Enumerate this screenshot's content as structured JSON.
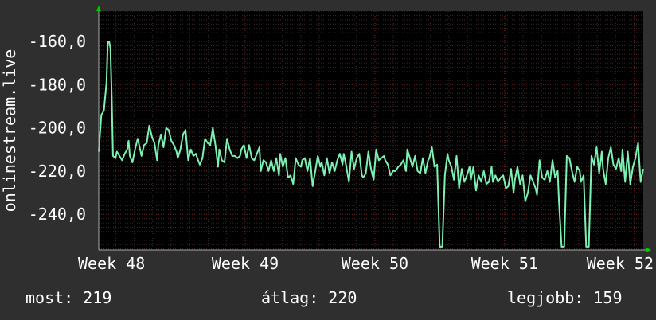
{
  "colors": {
    "background": "#2f2f2f",
    "plot_background": "#000000",
    "line": "#7df0b4",
    "grid": "#6a1f1f",
    "text": "#ffffff",
    "arrow": "#00cc00"
  },
  "stats": {
    "current": "most: 219",
    "average": "átlag: 220",
    "best": "legjobb: 159"
  },
  "chart_data": {
    "type": "line",
    "ylabel": "onlinestream.live",
    "xlabel": "",
    "title": "",
    "x_tick_labels": [
      "Week 48",
      "Week 49",
      "Week 50",
      "Week 51",
      "Week 52"
    ],
    "y_tick_labels": [
      "-160,0",
      "-180,0",
      "-200,0",
      "-220,0",
      "-240,0"
    ],
    "y_ticks": [
      -160,
      -180,
      -200,
      -220,
      -240
    ],
    "ylim": [
      -256.5,
      -146
    ],
    "xlim": [
      47.87,
      52.07
    ],
    "grid": true,
    "series": [
      {
        "values": [
          [
            47.87,
            -211
          ],
          [
            47.89,
            -194
          ],
          [
            47.91,
            -192
          ],
          [
            47.93,
            -179
          ],
          [
            47.94,
            -160
          ],
          [
            47.95,
            -160
          ],
          [
            47.96,
            -163
          ],
          [
            47.97,
            -185
          ],
          [
            47.98,
            -213
          ],
          [
            48.0,
            -214
          ],
          [
            48.01,
            -211
          ],
          [
            48.03,
            -213
          ],
          [
            48.05,
            -215
          ],
          [
            48.07,
            -212
          ],
          [
            48.09,
            -210
          ],
          [
            48.1,
            -206
          ],
          [
            48.11,
            -213
          ],
          [
            48.13,
            -216
          ],
          [
            48.15,
            -210
          ],
          [
            48.17,
            -205
          ],
          [
            48.19,
            -210
          ],
          [
            48.2,
            -213
          ],
          [
            48.22,
            -208
          ],
          [
            48.24,
            -207
          ],
          [
            48.26,
            -199
          ],
          [
            48.28,
            -204
          ],
          [
            48.3,
            -207
          ],
          [
            48.32,
            -215
          ],
          [
            48.33,
            -208
          ],
          [
            48.35,
            -203
          ],
          [
            48.37,
            -209
          ],
          [
            48.39,
            -200
          ],
          [
            48.41,
            -201
          ],
          [
            48.43,
            -206
          ],
          [
            48.45,
            -208
          ],
          [
            48.47,
            -211
          ],
          [
            48.48,
            -214
          ],
          [
            48.5,
            -210
          ],
          [
            48.52,
            -203
          ],
          [
            48.54,
            -201
          ],
          [
            48.56,
            -215
          ],
          [
            48.58,
            -210
          ],
          [
            48.6,
            -213
          ],
          [
            48.62,
            -212
          ],
          [
            48.63,
            -214
          ],
          [
            48.65,
            -217
          ],
          [
            48.67,
            -214
          ],
          [
            48.69,
            -205
          ],
          [
            48.71,
            -207
          ],
          [
            48.73,
            -208
          ],
          [
            48.75,
            -200
          ],
          [
            48.77,
            -208
          ],
          [
            48.79,
            -218
          ],
          [
            48.8,
            -210
          ],
          [
            48.82,
            -215
          ],
          [
            48.84,
            -216
          ],
          [
            48.86,
            -205
          ],
          [
            48.88,
            -210
          ],
          [
            48.9,
            -213
          ],
          [
            48.92,
            -213
          ],
          [
            48.94,
            -214
          ],
          [
            48.96,
            -213
          ],
          [
            48.97,
            -210
          ],
          [
            48.99,
            -208
          ],
          [
            49.01,
            -214
          ],
          [
            49.03,
            -208
          ],
          [
            49.05,
            -214
          ],
          [
            49.07,
            -215
          ],
          [
            49.09,
            -212
          ],
          [
            49.11,
            -209
          ],
          [
            49.12,
            -220
          ],
          [
            49.14,
            -215
          ],
          [
            49.16,
            -216
          ],
          [
            49.18,
            -220
          ],
          [
            49.2,
            -215
          ],
          [
            49.22,
            -220
          ],
          [
            49.24,
            -214
          ],
          [
            49.26,
            -222
          ],
          [
            49.27,
            -212
          ],
          [
            49.29,
            -218
          ],
          [
            49.31,
            -214
          ],
          [
            49.33,
            -223
          ],
          [
            49.35,
            -222
          ],
          [
            49.37,
            -226
          ],
          [
            49.39,
            -214
          ],
          [
            49.41,
            -217
          ],
          [
            49.43,
            -218
          ],
          [
            49.44,
            -215
          ],
          [
            49.46,
            -214
          ],
          [
            49.48,
            -220
          ],
          [
            49.5,
            -214
          ],
          [
            49.52,
            -227
          ],
          [
            49.54,
            -220
          ],
          [
            49.56,
            -213
          ],
          [
            49.58,
            -218
          ],
          [
            49.59,
            -216
          ],
          [
            49.61,
            -222
          ],
          [
            49.63,
            -214
          ],
          [
            49.65,
            -221
          ],
          [
            49.67,
            -216
          ],
          [
            49.69,
            -220
          ],
          [
            49.71,
            -215
          ],
          [
            49.73,
            -212
          ],
          [
            49.75,
            -217
          ],
          [
            49.76,
            -212
          ],
          [
            49.78,
            -218
          ],
          [
            49.8,
            -225
          ],
          [
            49.82,
            -211
          ],
          [
            49.84,
            -219
          ],
          [
            49.86,
            -214
          ],
          [
            49.88,
            -212
          ],
          [
            49.9,
            -222
          ],
          [
            49.91,
            -223
          ],
          [
            49.93,
            -221
          ],
          [
            49.95,
            -211
          ],
          [
            49.97,
            -219
          ],
          [
            49.99,
            -224
          ],
          [
            50.01,
            -210
          ],
          [
            50.03,
            -215
          ],
          [
            50.05,
            -214
          ],
          [
            50.07,
            -213
          ],
          [
            50.08,
            -215
          ],
          [
            50.1,
            -217
          ],
          [
            50.12,
            -222
          ],
          [
            50.14,
            -220
          ],
          [
            50.16,
            -220
          ],
          [
            50.18,
            -218
          ],
          [
            50.2,
            -217
          ],
          [
            50.22,
            -215
          ],
          [
            50.24,
            -220
          ],
          [
            50.25,
            -210
          ],
          [
            50.27,
            -214
          ],
          [
            50.29,
            -218
          ],
          [
            50.31,
            -213
          ],
          [
            50.33,
            -220
          ],
          [
            50.35,
            -221
          ],
          [
            50.37,
            -214
          ],
          [
            50.39,
            -221
          ],
          [
            50.41,
            -215
          ],
          [
            50.42,
            -214
          ],
          [
            50.44,
            -209
          ],
          [
            50.46,
            -218
          ],
          [
            50.48,
            -217
          ],
          [
            50.5,
            -255
          ],
          [
            50.52,
            -255
          ],
          [
            50.54,
            -222
          ],
          [
            50.56,
            -212
          ],
          [
            50.57,
            -215
          ],
          [
            50.59,
            -218
          ],
          [
            50.61,
            -224
          ],
          [
            50.63,
            -213
          ],
          [
            50.65,
            -228
          ],
          [
            50.67,
            -219
          ],
          [
            50.69,
            -225
          ],
          [
            50.71,
            -222
          ],
          [
            50.73,
            -218
          ],
          [
            50.74,
            -224
          ],
          [
            50.76,
            -218
          ],
          [
            50.78,
            -229
          ],
          [
            50.8,
            -222
          ],
          [
            50.82,
            -225
          ],
          [
            50.84,
            -220
          ],
          [
            50.86,
            -226
          ],
          [
            50.88,
            -225
          ],
          [
            50.9,
            -218
          ],
          [
            50.91,
            -225
          ],
          [
            50.93,
            -222
          ],
          [
            50.95,
            -225
          ],
          [
            50.97,
            -223
          ],
          [
            50.99,
            -222
          ],
          [
            51.01,
            -228
          ],
          [
            51.03,
            -227
          ],
          [
            51.05,
            -219
          ],
          [
            51.07,
            -230
          ],
          [
            51.08,
            -224
          ],
          [
            51.1,
            -218
          ],
          [
            51.12,
            -226
          ],
          [
            51.14,
            -222
          ],
          [
            51.16,
            -234
          ],
          [
            51.18,
            -230
          ],
          [
            51.2,
            -222
          ],
          [
            51.22,
            -225
          ],
          [
            51.24,
            -228
          ],
          [
            51.25,
            -231
          ],
          [
            51.27,
            -215
          ],
          [
            51.29,
            -223
          ],
          [
            51.31,
            -224
          ],
          [
            51.33,
            -220
          ],
          [
            51.35,
            -225
          ],
          [
            51.37,
            -215
          ],
          [
            51.39,
            -223
          ],
          [
            51.41,
            -220
          ],
          [
            51.42,
            -234
          ],
          [
            51.44,
            -255
          ],
          [
            51.46,
            -255
          ],
          [
            51.48,
            -213
          ],
          [
            51.5,
            -214
          ],
          [
            51.52,
            -220
          ],
          [
            51.54,
            -225
          ],
          [
            51.56,
            -218
          ],
          [
            51.58,
            -220
          ],
          [
            51.59,
            -225
          ],
          [
            51.61,
            -222
          ],
          [
            51.63,
            -255
          ],
          [
            51.65,
            -255
          ],
          [
            51.67,
            -213
          ],
          [
            51.69,
            -217
          ],
          [
            51.71,
            -209
          ],
          [
            51.73,
            -221
          ],
          [
            51.75,
            -211
          ],
          [
            51.76,
            -219
          ],
          [
            51.78,
            -226
          ],
          [
            51.8,
            -214
          ],
          [
            51.82,
            -209
          ],
          [
            51.84,
            -217
          ],
          [
            51.86,
            -219
          ],
          [
            51.88,
            -214
          ],
          [
            51.9,
            -220
          ],
          [
            51.91,
            -210
          ],
          [
            51.93,
            -225
          ],
          [
            51.95,
            -211
          ],
          [
            51.97,
            -226
          ],
          [
            51.99,
            -218
          ],
          [
            52.01,
            -214
          ],
          [
            52.03,
            -207
          ],
          [
            52.05,
            -225
          ],
          [
            52.07,
            -219
          ]
        ]
      }
    ]
  }
}
